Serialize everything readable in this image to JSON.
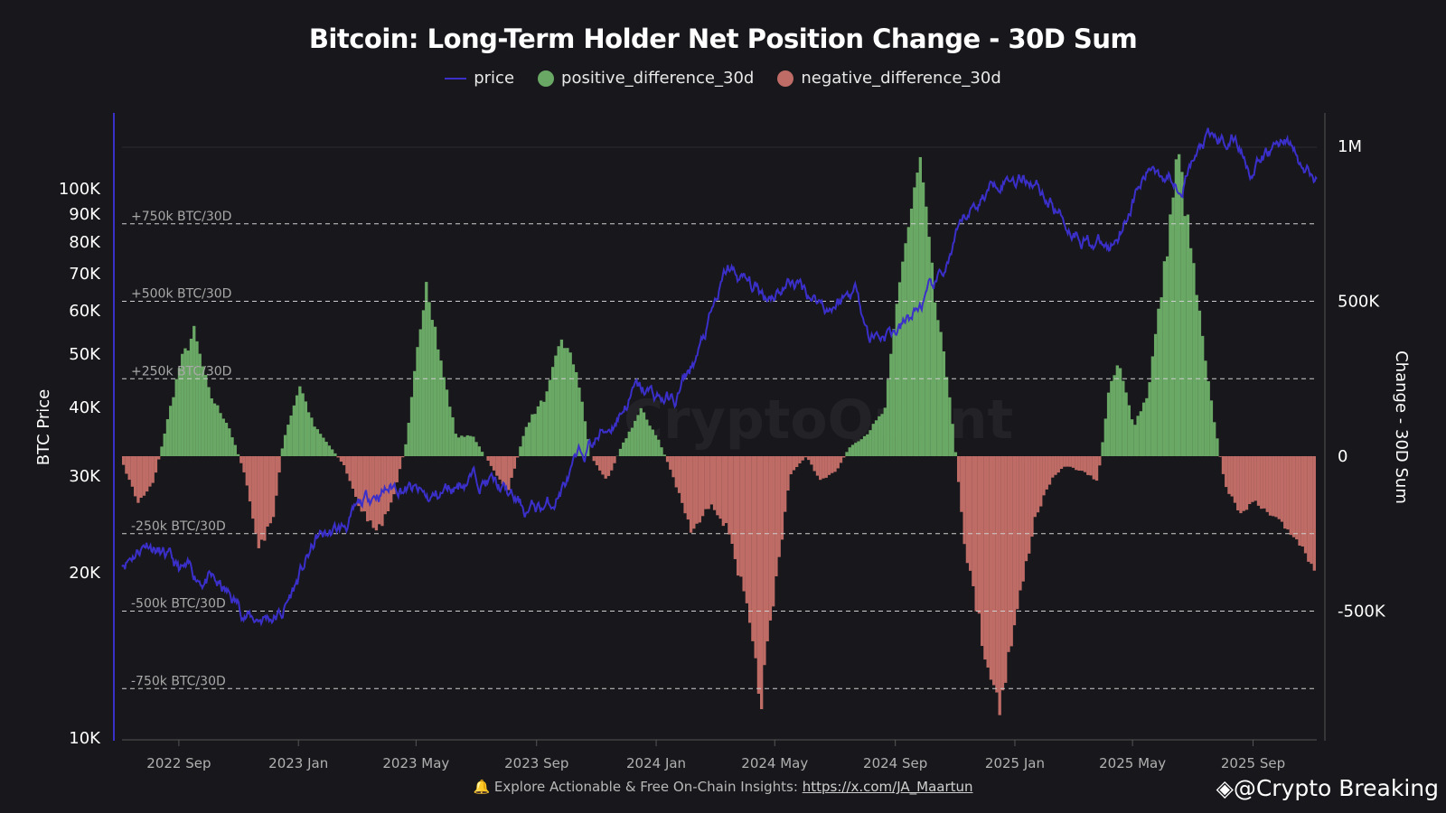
{
  "chart_data": {
    "type": "bar+line",
    "title": "Bitcoin: Long-Term Holder Net Position Change - 30D Sum",
    "legend": [
      "price",
      "positive_difference_30d",
      "negative_difference_30d"
    ],
    "legend_placement": "top-center",
    "colors": {
      "price": "#3b2fc9",
      "positive": "#6aa865",
      "negative": "#c06c66",
      "background": "#18181c"
    },
    "ylabel_left": "BTC Price",
    "ylabel_right": "Change - 30D Sum",
    "y_left_scale": "log",
    "y_left_ticks": [
      "10K",
      "20K",
      "30K",
      "40K",
      "50K",
      "60K",
      "70K",
      "80K",
      "90K",
      "100K"
    ],
    "y_left_tick_values": [
      10000,
      20000,
      30000,
      40000,
      50000,
      60000,
      70000,
      80000,
      90000,
      100000
    ],
    "y_right_ticks": [
      "1M",
      "500K",
      "0",
      "-500K"
    ],
    "y_right_tick_values": [
      1000000,
      500000,
      0,
      -500000
    ],
    "x_ticks": [
      "2022 Sep",
      "2023 Jan",
      "2023 May",
      "2023 Sep",
      "2024 Jan",
      "2024 May",
      "2024 Sep",
      "2025 Jan",
      "2025 May",
      "2025 Sep"
    ],
    "x_tick_dates": [
      "2022-09-01",
      "2023-01-01",
      "2023-05-01",
      "2023-09-01",
      "2024-01-01",
      "2024-05-01",
      "2024-09-01",
      "2025-01-01",
      "2025-05-01",
      "2025-09-01"
    ],
    "xlim": [
      "2022-07-05",
      "2025-11-05"
    ],
    "reference_lines": [
      {
        "value": 750000,
        "label": "+750k BTC/30D"
      },
      {
        "value": 500000,
        "label": "+500k BTC/30D"
      },
      {
        "value": 250000,
        "label": "+250k BTC/30D"
      },
      {
        "value": -250000,
        "label": "-250k BTC/30D"
      },
      {
        "value": -500000,
        "label": "-500k BTC/30D"
      },
      {
        "value": -750000,
        "label": "-750k BTC/30D"
      }
    ],
    "price": [
      [
        "2022-07-05",
        21000
      ],
      [
        "2022-08-01",
        23000
      ],
      [
        "2022-09-01",
        20000
      ],
      [
        "2022-10-01",
        19500
      ],
      [
        "2022-11-15",
        16500
      ],
      [
        "2022-12-15",
        16800
      ],
      [
        "2023-01-20",
        23000
      ],
      [
        "2023-02-15",
        24000
      ],
      [
        "2023-03-20",
        28000
      ],
      [
        "2023-04-15",
        29000
      ],
      [
        "2023-05-15",
        27000
      ],
      [
        "2023-06-25",
        30000
      ],
      [
        "2023-07-15",
        29500
      ],
      [
        "2023-08-20",
        26000
      ],
      [
        "2023-09-15",
        26500
      ],
      [
        "2023-10-25",
        34000
      ],
      [
        "2023-11-15",
        37000
      ],
      [
        "2023-12-10",
        43000
      ],
      [
        "2024-01-20",
        41000
      ],
      [
        "2024-02-15",
        51000
      ],
      [
        "2024-03-14",
        71000
      ],
      [
        "2024-04-20",
        64000
      ],
      [
        "2024-05-20",
        68000
      ],
      [
        "2024-06-25",
        61000
      ],
      [
        "2024-07-25",
        66000
      ],
      [
        "2024-08-05",
        54000
      ],
      [
        "2024-09-06",
        55000
      ],
      [
        "2024-10-15",
        67000
      ],
      [
        "2024-11-15",
        90000
      ],
      [
        "2024-12-17",
        106000
      ],
      [
        "2025-01-20",
        105000
      ],
      [
        "2025-02-25",
        86000
      ],
      [
        "2025-04-08",
        77000
      ],
      [
        "2025-05-01",
        96000
      ],
      [
        "2025-05-22",
        110000
      ],
      [
        "2025-06-20",
        104000
      ],
      [
        "2025-07-14",
        121000
      ],
      [
        "2025-08-14",
        123000
      ],
      [
        "2025-09-01",
        108000
      ],
      [
        "2025-10-06",
        125000
      ],
      [
        "2025-10-20",
        109000
      ],
      [
        "2025-11-05",
        103000
      ]
    ],
    "change_30d_sum": [
      [
        "2022-07-05",
        -30000
      ],
      [
        "2022-07-20",
        -150000
      ],
      [
        "2022-08-05",
        -80000
      ],
      [
        "2022-08-15",
        60000
      ],
      [
        "2022-09-01",
        300000
      ],
      [
        "2022-09-15",
        400000
      ],
      [
        "2022-10-01",
        200000
      ],
      [
        "2022-10-20",
        100000
      ],
      [
        "2022-11-05",
        -50000
      ],
      [
        "2022-11-20",
        -300000
      ],
      [
        "2022-12-05",
        -200000
      ],
      [
        "2022-12-15",
        50000
      ],
      [
        "2023-01-01",
        230000
      ],
      [
        "2023-01-15",
        100000
      ],
      [
        "2023-02-01",
        30000
      ],
      [
        "2023-02-15",
        -30000
      ],
      [
        "2023-03-01",
        -150000
      ],
      [
        "2023-03-20",
        -250000
      ],
      [
        "2023-04-05",
        -150000
      ],
      [
        "2023-04-20",
        50000
      ],
      [
        "2023-05-10",
        580000
      ],
      [
        "2023-05-25",
        300000
      ],
      [
        "2023-06-10",
        60000
      ],
      [
        "2023-06-25",
        70000
      ],
      [
        "2023-07-15",
        -30000
      ],
      [
        "2023-08-01",
        -120000
      ],
      [
        "2023-08-20",
        100000
      ],
      [
        "2023-09-10",
        200000
      ],
      [
        "2023-09-25",
        380000
      ],
      [
        "2023-10-10",
        280000
      ],
      [
        "2023-10-25",
        0
      ],
      [
        "2023-11-10",
        -80000
      ],
      [
        "2023-11-25",
        30000
      ],
      [
        "2023-12-15",
        150000
      ],
      [
        "2024-01-01",
        60000
      ],
      [
        "2024-01-15",
        -50000
      ],
      [
        "2024-02-05",
        -250000
      ],
      [
        "2024-02-25",
        -150000
      ],
      [
        "2024-03-15",
        -250000
      ],
      [
        "2024-04-01",
        -500000
      ],
      [
        "2024-04-15",
        -800000
      ],
      [
        "2024-05-01",
        -400000
      ],
      [
        "2024-05-15",
        -60000
      ],
      [
        "2024-06-01",
        0
      ],
      [
        "2024-06-15",
        -80000
      ],
      [
        "2024-07-01",
        -50000
      ],
      [
        "2024-07-15",
        30000
      ],
      [
        "2024-08-01",
        70000
      ],
      [
        "2024-08-20",
        150000
      ],
      [
        "2024-09-05",
        600000
      ],
      [
        "2024-09-25",
        950000
      ],
      [
        "2024-10-10",
        500000
      ],
      [
        "2024-10-25",
        200000
      ],
      [
        "2024-11-10",
        -300000
      ],
      [
        "2024-12-01",
        -650000
      ],
      [
        "2024-12-15",
        -800000
      ],
      [
        "2025-01-05",
        -450000
      ],
      [
        "2025-01-20",
        -200000
      ],
      [
        "2025-02-05",
        -80000
      ],
      [
        "2025-02-20",
        -30000
      ],
      [
        "2025-03-10",
        -50000
      ],
      [
        "2025-03-25",
        -80000
      ],
      [
        "2025-04-05",
        200000
      ],
      [
        "2025-04-15",
        300000
      ],
      [
        "2025-05-01",
        100000
      ],
      [
        "2025-05-15",
        200000
      ],
      [
        "2025-06-01",
        600000
      ],
      [
        "2025-06-15",
        980000
      ],
      [
        "2025-07-01",
        600000
      ],
      [
        "2025-07-15",
        250000
      ],
      [
        "2025-08-01",
        -80000
      ],
      [
        "2025-08-15",
        -180000
      ],
      [
        "2025-09-01",
        -150000
      ],
      [
        "2025-09-20",
        -200000
      ],
      [
        "2025-10-10",
        -250000
      ],
      [
        "2025-11-01",
        -350000
      ]
    ]
  },
  "footer": {
    "text": "Explore Actionable & Free On-Chain Insights:",
    "link": "https://x.com/JA_Maartun"
  },
  "watermark": "@Crypto Breaking",
  "bg_watermark": "CryptoQuant"
}
